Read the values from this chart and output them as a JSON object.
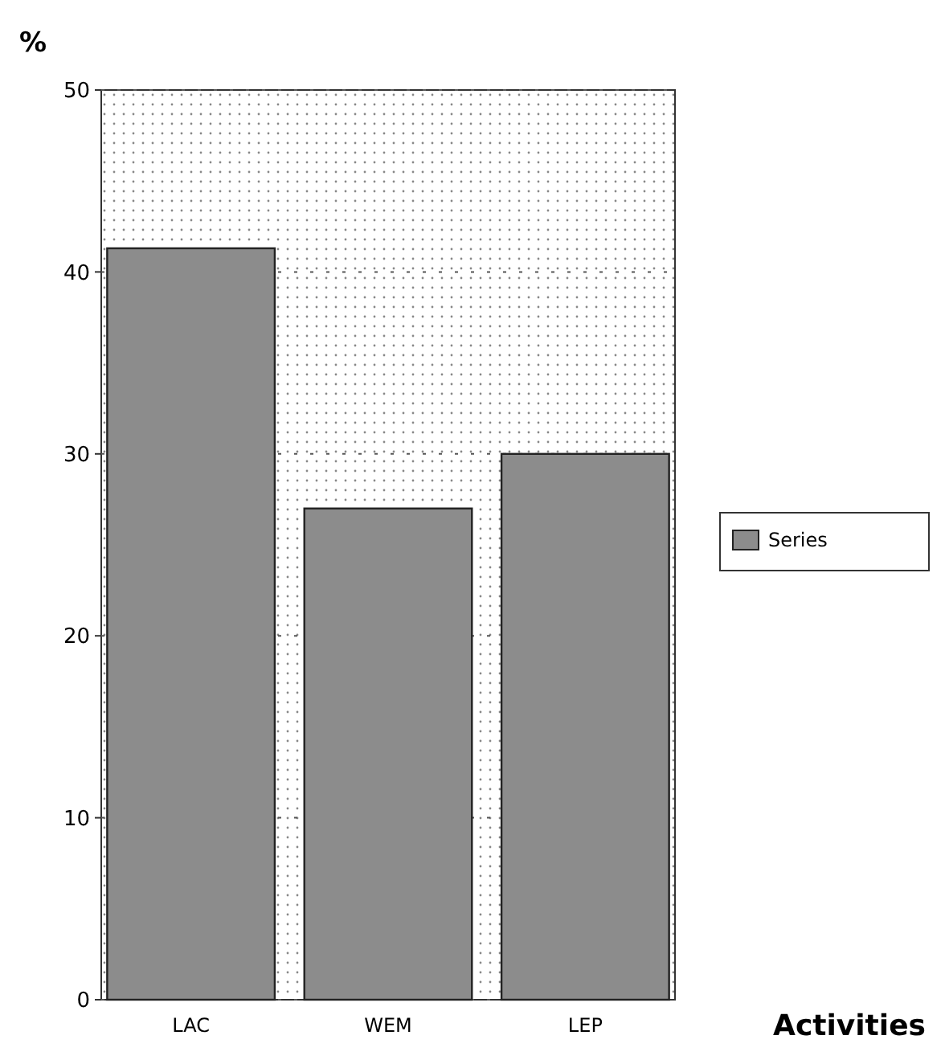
{
  "chart_data": {
    "type": "bar",
    "ylabel": "%",
    "xlabel": "Activities",
    "categories": [
      "LAC",
      "WEM",
      "LEP"
    ],
    "series": [
      {
        "name": "Series",
        "color": "#8c8c8c",
        "values": [
          41.3,
          27,
          30
        ]
      }
    ],
    "ylim": [
      0,
      50
    ],
    "yticks": [
      0,
      10,
      20,
      30,
      40,
      50
    ],
    "grid": "y",
    "legend": "right"
  }
}
